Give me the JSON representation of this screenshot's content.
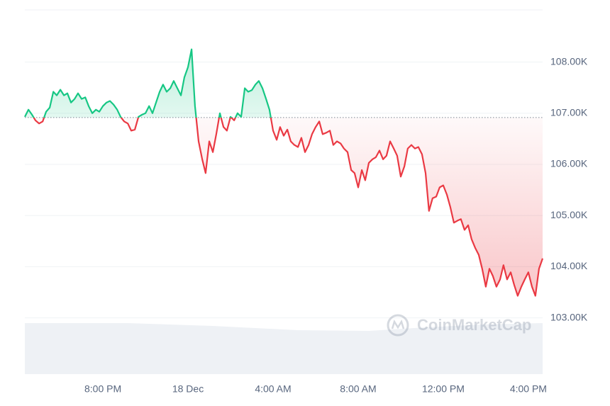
{
  "chart_data": {
    "type": "line",
    "watermark": "CoinMarketCap",
    "colors": {
      "up": "#16c784",
      "down": "#ea3943"
    },
    "baseline": 106917,
    "x": [
      -7.67,
      -7.5,
      -7.33,
      -7.17,
      -7,
      -6.83,
      -6.67,
      -6.5,
      -6.33,
      -6.17,
      -6,
      -5.83,
      -5.67,
      -5.5,
      -5.33,
      -5.17,
      -5,
      -4.83,
      -4.67,
      -4.5,
      -4.33,
      -4.17,
      -4,
      -3.83,
      -3.67,
      -3.5,
      -3.33,
      -3.17,
      -3,
      -2.83,
      -2.67,
      -2.5,
      -2.33,
      -2.17,
      -2,
      -1.83,
      -1.67,
      -1.5,
      -1.33,
      -1.17,
      -1,
      -0.83,
      -0.67,
      -0.5,
      -0.33,
      -0.17,
      0,
      0.17,
      0.33,
      0.5,
      0.67,
      0.83,
      1,
      1.17,
      1.33,
      1.5,
      1.67,
      1.83,
      2,
      2.17,
      2.33,
      2.5,
      2.67,
      2.83,
      3,
      3.17,
      3.33,
      3.5,
      3.67,
      3.83,
      4,
      4.17,
      4.33,
      4.5,
      4.67,
      4.83,
      5,
      5.17,
      5.33,
      5.5,
      5.67,
      5.83,
      6,
      6.17,
      6.33,
      6.5,
      6.67,
      6.83,
      7,
      7.17,
      7.33,
      7.5,
      7.67,
      7.83,
      8,
      8.17,
      8.33,
      8.5,
      8.67,
      8.83,
      9,
      9.17,
      9.33,
      9.5,
      9.67,
      9.83,
      10,
      10.17,
      10.33,
      10.5,
      10.67,
      10.83,
      11,
      11.17,
      11.33,
      11.5,
      11.67,
      11.83,
      12,
      12.17,
      12.33,
      12.5,
      12.67,
      12.83,
      13,
      13.17,
      13.33,
      13.5,
      13.67,
      13.83,
      14,
      14.17,
      14.33,
      14.5,
      14.67,
      14.83,
      15,
      15.17,
      15.33,
      15.5,
      15.67,
      15.83,
      16,
      16.17,
      16.33,
      16.5,
      16.67
    ],
    "values": [
      106930,
      107070,
      106970,
      106860,
      106800,
      106840,
      107030,
      107110,
      107420,
      107350,
      107460,
      107350,
      107390,
      107210,
      107280,
      107390,
      107280,
      107310,
      107140,
      107000,
      107070,
      107030,
      107140,
      107210,
      107240,
      107170,
      107070,
      106930,
      106840,
      106800,
      106660,
      106680,
      106930,
      106970,
      107000,
      107140,
      107000,
      107210,
      107420,
      107560,
      107420,
      107490,
      107630,
      107490,
      107350,
      107700,
      107900,
      108250,
      107140,
      106450,
      106100,
      105830,
      106450,
      106240,
      106590,
      107000,
      106730,
      106660,
      106930,
      106860,
      107000,
      106930,
      107490,
      107420,
      107450,
      107560,
      107630,
      107490,
      107280,
      107070,
      106660,
      106480,
      106730,
      106560,
      106680,
      106450,
      106380,
      106340,
      106520,
      106240,
      106380,
      106590,
      106730,
      106840,
      106590,
      106620,
      106660,
      106380,
      106450,
      106410,
      106310,
      106240,
      105890,
      105830,
      105550,
      105890,
      105690,
      106030,
      106100,
      106140,
      106270,
      106100,
      106170,
      106450,
      106310,
      106170,
      105760,
      105960,
      106310,
      106380,
      106310,
      106340,
      106200,
      105830,
      105090,
      105340,
      105370,
      105550,
      105590,
      105410,
      105170,
      104860,
      104900,
      104930,
      104720,
      104810,
      104540,
      104370,
      104230,
      103960,
      103610,
      103960,
      103820,
      103610,
      103750,
      104030,
      103750,
      103890,
      103650,
      103430,
      103610,
      103750,
      103890,
      103610,
      103430,
      103960,
      104160
    ],
    "xlim": [
      -7.67,
      16.67
    ],
    "xticks": [
      {
        "value": -4,
        "label": "8:00 PM"
      },
      {
        "value": 0,
        "label": "18 Dec"
      },
      {
        "value": 4,
        "label": "4:00 AM"
      },
      {
        "value": 8,
        "label": "8:00 AM"
      },
      {
        "value": 12,
        "label": "12:00 PM"
      },
      {
        "value": 16,
        "label": "4:00 PM"
      }
    ],
    "ylim": [
      101900,
      109020
    ],
    "yticks": [
      {
        "value": 103000,
        "label": "103.00K"
      },
      {
        "value": 104000,
        "label": "104.00K"
      },
      {
        "value": 105000,
        "label": "105.00K"
      },
      {
        "value": 106000,
        "label": "106.00K"
      },
      {
        "value": 107000,
        "label": "107.00K"
      },
      {
        "value": 108000,
        "label": "108.00K"
      }
    ],
    "grid": true
  }
}
